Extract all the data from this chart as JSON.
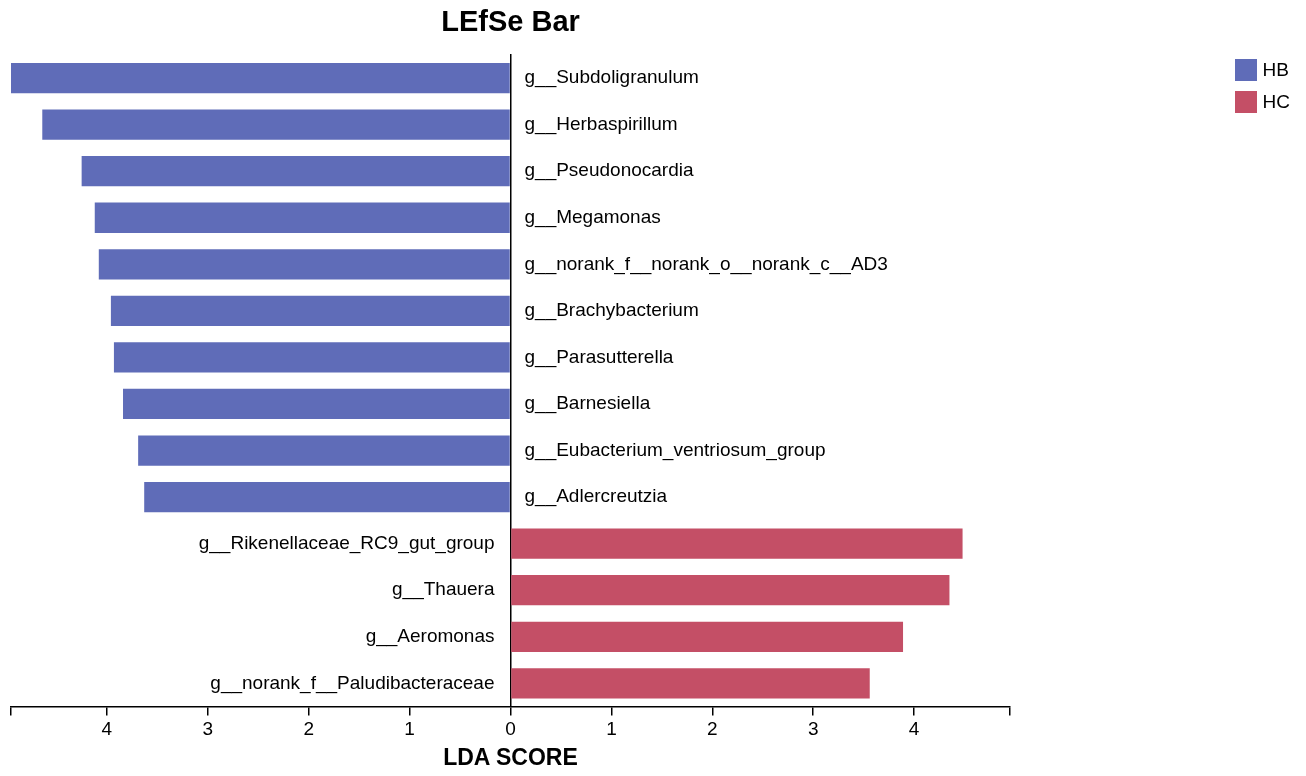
{
  "chart_data": {
    "type": "bar",
    "title": "LEfSe Bar",
    "xlabel": "LDA SCORE",
    "orientation": "horizontal",
    "categories": [
      "g__Subdoligranulum",
      "g__Herbaspirillum",
      "g__Pseudonocardia",
      "g__Megamonas",
      "g__norank_f__norank_o__norank_c__AD3",
      "g__Brachybacterium",
      "g__Parasutterella",
      "g__Barnesiella",
      "g__Eubacterium_ventriosum_group",
      "g__Adlercreutzia",
      "g__Rikenellaceae_RC9_gut_group",
      "g__Thauera",
      "g__Aeromonas",
      "g__norank_f__Paludibacteraceae"
    ],
    "series": [
      {
        "name": "HB",
        "color": "#5f6cb8",
        "values": [
          -4.95,
          -4.64,
          -4.25,
          -4.12,
          -4.08,
          -3.96,
          -3.93,
          -3.84,
          -3.69,
          -3.63,
          null,
          null,
          null,
          null
        ]
      },
      {
        "name": "HC",
        "color": "#c44f66",
        "values": [
          null,
          null,
          null,
          null,
          null,
          null,
          null,
          null,
          null,
          null,
          4.48,
          4.35,
          3.89,
          3.56
        ]
      }
    ],
    "xlim": [
      -4.95,
      4.95
    ],
    "xticks": [
      {
        "value": -4.95,
        "label": null
      },
      {
        "value": -4,
        "label": "4"
      },
      {
        "value": -3,
        "label": "3"
      },
      {
        "value": -2,
        "label": "2"
      },
      {
        "value": -1,
        "label": "1"
      },
      0,
      1,
      2,
      3,
      4,
      {
        "value": 4.95,
        "label": null
      }
    ],
    "grid": false,
    "legend": "top right"
  }
}
